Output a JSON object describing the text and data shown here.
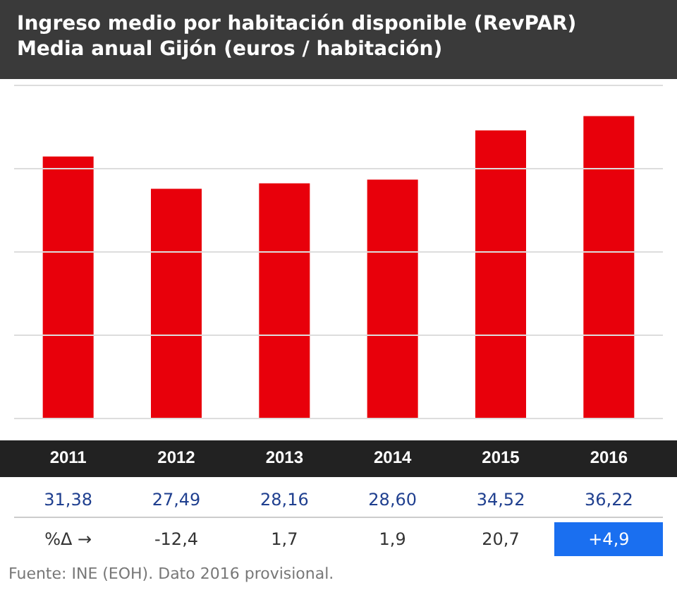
{
  "chart_data": {
    "type": "bar",
    "title": "Ingreso medio por habitación disponible (RevPAR)",
    "subtitle": "Media anual Gijón (euros / habitación)",
    "categories": [
      "2011",
      "2012",
      "2013",
      "2014",
      "2015",
      "2016"
    ],
    "values": [
      31.38,
      27.49,
      28.16,
      28.6,
      34.52,
      36.22
    ],
    "value_labels": [
      "31,38",
      "27,49",
      "28,16",
      "28,60",
      "34,52",
      "36,22"
    ],
    "color": "#e8000b",
    "ylim": [
      0,
      40
    ],
    "yticks": [
      {
        "value": 0,
        "label": null
      },
      {
        "value": 10,
        "label": null
      },
      {
        "value": 20,
        "label": null
      },
      {
        "value": 30,
        "label": null
      },
      {
        "value": 40,
        "label": null
      }
    ],
    "grid": "y",
    "tick_labels": "x",
    "annotations": [
      "%Δ →",
      "-12,4",
      "1,7",
      "1,9",
      "20,7",
      "+4,9",
      "Fuente: INE (EOH). Dato 2016 provisional."
    ]
  }
}
